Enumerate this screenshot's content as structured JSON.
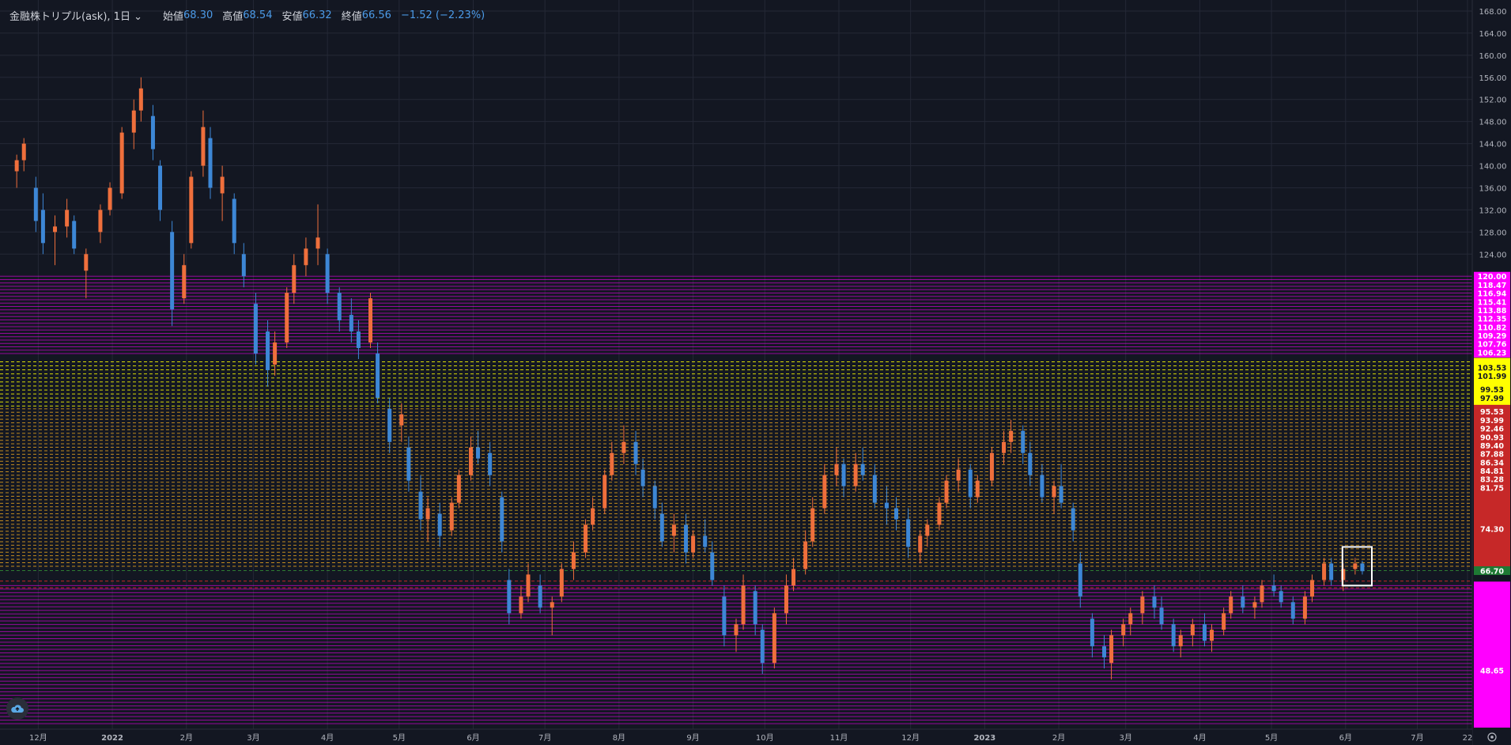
{
  "legend": {
    "symbol": "金融株トリプル(ask), 1日",
    "chevron": "⌄",
    "open_label": "始値",
    "open_value": "68.30",
    "high_label": "高値",
    "high_value": "68.54",
    "low_label": "安値",
    "low_value": "66.32",
    "close_label": "終値",
    "close_value": "66.56",
    "change": "−1.52 (−2.23%)"
  },
  "colors": {
    "background": "#131722",
    "up": "#ef6f3c",
    "down": "#3d87d6",
    "magenta": "#ff00ff",
    "yellow": "#ffff00",
    "red": "#c62828",
    "green": "#2e7d32",
    "grid": "#242836",
    "text": "#b2b5be"
  },
  "icons": {
    "cloud": "cloud-upload-icon",
    "gear": "gear-icon"
  },
  "chart_data": {
    "type": "candlestick",
    "y_axis": {
      "min": 38,
      "max": 170,
      "position": "right",
      "ticks": [
        "168.00",
        "164.00",
        "160.00",
        "156.00",
        "152.00",
        "148.00",
        "144.00",
        "140.00",
        "136.00",
        "132.00",
        "128.00",
        "124.00"
      ]
    },
    "x_axis": {
      "labels": [
        "12月",
        "2022",
        "2月",
        "3月",
        "4月",
        "5月",
        "6月",
        "7月",
        "8月",
        "9月",
        "10月",
        "11月",
        "12月",
        "2023",
        "2月",
        "3月",
        "4月",
        "5月",
        "6月",
        "7月",
        "22"
      ]
    },
    "level_zones": [
      {
        "name": "upper-magenta",
        "from": 106.0,
        "to": 120.0,
        "color": "#ff00ff",
        "count": 24
      },
      {
        "name": "yellow",
        "from": 96.5,
        "to": 104.5,
        "color": "#ffff00",
        "count": 12
      },
      {
        "name": "orange",
        "from": 67.5,
        "to": 96.0,
        "color": "#e0a020",
        "count": 46
      },
      {
        "name": "lower-magenta",
        "from": 39.0,
        "to": 64.0,
        "color": "#ff00ff",
        "count": 40
      }
    ],
    "price_labels": [
      {
        "text": "120.00",
        "value": 120.0,
        "bg": "#ff00ff"
      },
      {
        "text": "118.47",
        "value": 118.47,
        "bg": "#ff00ff"
      },
      {
        "text": "116.94",
        "value": 116.94,
        "bg": "#ff00ff"
      },
      {
        "text": "115.41",
        "value": 115.41,
        "bg": "#ff00ff"
      },
      {
        "text": "113.88",
        "value": 113.88,
        "bg": "#ff00ff"
      },
      {
        "text": "112.35",
        "value": 112.35,
        "bg": "#ff00ff"
      },
      {
        "text": "110.82",
        "value": 110.82,
        "bg": "#ff00ff"
      },
      {
        "text": "109.29",
        "value": 109.29,
        "bg": "#ff00ff"
      },
      {
        "text": "107.76",
        "value": 107.76,
        "bg": "#ff00ff"
      },
      {
        "text": "106.23",
        "value": 106.23,
        "bg": "#ff00ff"
      },
      {
        "text": "103.53",
        "value": 103.53,
        "bg": "#ffff00"
      },
      {
        "text": "101.99",
        "value": 101.99,
        "bg": "#ffff00"
      },
      {
        "text": "99.53",
        "value": 99.53,
        "bg": "#ffff00"
      },
      {
        "text": "97.99",
        "value": 97.99,
        "bg": "#ffff00"
      },
      {
        "text": "95.53",
        "value": 95.53,
        "bg": "#c62828"
      },
      {
        "text": "93.99",
        "value": 93.99,
        "bg": "#c62828"
      },
      {
        "text": "92.46",
        "value": 92.46,
        "bg": "#c62828"
      },
      {
        "text": "90.93",
        "value": 90.93,
        "bg": "#c62828"
      },
      {
        "text": "89.40",
        "value": 89.4,
        "bg": "#c62828"
      },
      {
        "text": "87.88",
        "value": 87.88,
        "bg": "#c62828"
      },
      {
        "text": "86.34",
        "value": 86.34,
        "bg": "#c62828"
      },
      {
        "text": "84.81",
        "value": 84.81,
        "bg": "#c62828"
      },
      {
        "text": "83.28",
        "value": 83.28,
        "bg": "#c62828"
      },
      {
        "text": "81.75",
        "value": 81.75,
        "bg": "#c62828"
      },
      {
        "text": "74.30",
        "value": 74.3,
        "bg": "#c62828"
      },
      {
        "text": "66.70",
        "value": 66.7,
        "bg": "#1e7a34"
      },
      {
        "text": "48.65",
        "value": 48.65,
        "bg": "#ff00ff"
      }
    ],
    "series": [
      {
        "date": "2021-11-22",
        "o": 139,
        "h": 142,
        "l": 136,
        "c": 141
      },
      {
        "date": "2021-11-25",
        "o": 141,
        "h": 145,
        "l": 139,
        "c": 144
      },
      {
        "date": "2021-11-30",
        "o": 136,
        "h": 138,
        "l": 128,
        "c": 130
      },
      {
        "date": "2021-12-03",
        "o": 132,
        "h": 135,
        "l": 124,
        "c": 126
      },
      {
        "date": "2021-12-08",
        "o": 128,
        "h": 131,
        "l": 122,
        "c": 129
      },
      {
        "date": "2021-12-13",
        "o": 129,
        "h": 134,
        "l": 127,
        "c": 132
      },
      {
        "date": "2021-12-16",
        "o": 130,
        "h": 131,
        "l": 124,
        "c": 125
      },
      {
        "date": "2021-12-21",
        "o": 121,
        "h": 125,
        "l": 116,
        "c": 124
      },
      {
        "date": "2021-12-27",
        "o": 128,
        "h": 133,
        "l": 126,
        "c": 132
      },
      {
        "date": "2021-12-31",
        "o": 132,
        "h": 137,
        "l": 131,
        "c": 136
      },
      {
        "date": "2022-01-05",
        "o": 135,
        "h": 147,
        "l": 134,
        "c": 146
      },
      {
        "date": "2022-01-10",
        "o": 146,
        "h": 152,
        "l": 143,
        "c": 150
      },
      {
        "date": "2022-01-13",
        "o": 150,
        "h": 156,
        "l": 148,
        "c": 154
      },
      {
        "date": "2022-01-18",
        "o": 149,
        "h": 151,
        "l": 141,
        "c": 143
      },
      {
        "date": "2022-01-21",
        "o": 140,
        "h": 141,
        "l": 130,
        "c": 132
      },
      {
        "date": "2022-01-26",
        "o": 128,
        "h": 130,
        "l": 111,
        "c": 114
      },
      {
        "date": "2022-01-31",
        "o": 116,
        "h": 124,
        "l": 115,
        "c": 122
      },
      {
        "date": "2022-02-03",
        "o": 126,
        "h": 139,
        "l": 125,
        "c": 138
      },
      {
        "date": "2022-02-08",
        "o": 140,
        "h": 150,
        "l": 138,
        "c": 147
      },
      {
        "date": "2022-02-11",
        "o": 145,
        "h": 147,
        "l": 134,
        "c": 136
      },
      {
        "date": "2022-02-16",
        "o": 135,
        "h": 140,
        "l": 130,
        "c": 138
      },
      {
        "date": "2022-02-21",
        "o": 134,
        "h": 135,
        "l": 124,
        "c": 126
      },
      {
        "date": "2022-02-25",
        "o": 124,
        "h": 126,
        "l": 118,
        "c": 120
      },
      {
        "date": "2022-03-02",
        "o": 115,
        "h": 117,
        "l": 104,
        "c": 106
      },
      {
        "date": "2022-03-07",
        "o": 110,
        "h": 112,
        "l": 100,
        "c": 103
      },
      {
        "date": "2022-03-10",
        "o": 104,
        "h": 110,
        "l": 102,
        "c": 108
      },
      {
        "date": "2022-03-15",
        "o": 108,
        "h": 118,
        "l": 107,
        "c": 117
      },
      {
        "date": "2022-03-18",
        "o": 117,
        "h": 124,
        "l": 115,
        "c": 122
      },
      {
        "date": "2022-03-23",
        "o": 122,
        "h": 127,
        "l": 120,
        "c": 125
      },
      {
        "date": "2022-03-28",
        "o": 125,
        "h": 133,
        "l": 122,
        "c": 127
      },
      {
        "date": "2022-04-01",
        "o": 124,
        "h": 125,
        "l": 115,
        "c": 117
      },
      {
        "date": "2022-04-06",
        "o": 117,
        "h": 118,
        "l": 110,
        "c": 112
      },
      {
        "date": "2022-04-11",
        "o": 113,
        "h": 116,
        "l": 108,
        "c": 110
      },
      {
        "date": "2022-04-14",
        "o": 110,
        "h": 112,
        "l": 105,
        "c": 107
      },
      {
        "date": "2022-04-19",
        "o": 108,
        "h": 117,
        "l": 107,
        "c": 116
      },
      {
        "date": "2022-04-22",
        "o": 106,
        "h": 108,
        "l": 97,
        "c": 98
      },
      {
        "date": "2022-04-27",
        "o": 96,
        "h": 98,
        "l": 88,
        "c": 90
      },
      {
        "date": "2022-05-02",
        "o": 93,
        "h": 97,
        "l": 90,
        "c": 95
      },
      {
        "date": "2022-05-05",
        "o": 89,
        "h": 91,
        "l": 81,
        "c": 83
      },
      {
        "date": "2022-05-10",
        "o": 81,
        "h": 84,
        "l": 74,
        "c": 76
      },
      {
        "date": "2022-05-13",
        "o": 76,
        "h": 80,
        "l": 72,
        "c": 78
      },
      {
        "date": "2022-05-18",
        "o": 77,
        "h": 79,
        "l": 71,
        "c": 73
      },
      {
        "date": "2022-05-23",
        "o": 74,
        "h": 80,
        "l": 73,
        "c": 79
      },
      {
        "date": "2022-05-26",
        "o": 79,
        "h": 85,
        "l": 78,
        "c": 84
      },
      {
        "date": "2022-05-31",
        "o": 84,
        "h": 91,
        "l": 83,
        "c": 89
      },
      {
        "date": "2022-06-03",
        "o": 89,
        "h": 92,
        "l": 86,
        "c": 87
      },
      {
        "date": "2022-06-08",
        "o": 88,
        "h": 90,
        "l": 82,
        "c": 84
      },
      {
        "date": "2022-06-13",
        "o": 80,
        "h": 81,
        "l": 70,
        "c": 72
      },
      {
        "date": "2022-06-16",
        "o": 65,
        "h": 67,
        "l": 57,
        "c": 59
      },
      {
        "date": "2022-06-21",
        "o": 59,
        "h": 64,
        "l": 58,
        "c": 62
      },
      {
        "date": "2022-06-24",
        "o": 62,
        "h": 68,
        "l": 61,
        "c": 66
      },
      {
        "date": "2022-06-29",
        "o": 64,
        "h": 66,
        "l": 59,
        "c": 60
      },
      {
        "date": "2022-07-04",
        "o": 60,
        "h": 62,
        "l": 55,
        "c": 61
      },
      {
        "date": "2022-07-08",
        "o": 62,
        "h": 68,
        "l": 61,
        "c": 67
      },
      {
        "date": "2022-07-13",
        "o": 67,
        "h": 72,
        "l": 65,
        "c": 70
      },
      {
        "date": "2022-07-18",
        "o": 70,
        "h": 76,
        "l": 69,
        "c": 75
      },
      {
        "date": "2022-07-21",
        "o": 75,
        "h": 80,
        "l": 74,
        "c": 78
      },
      {
        "date": "2022-07-26",
        "o": 78,
        "h": 85,
        "l": 77,
        "c": 84
      },
      {
        "date": "2022-07-29",
        "o": 84,
        "h": 90,
        "l": 83,
        "c": 88
      },
      {
        "date": "2022-08-03",
        "o": 88,
        "h": 93,
        "l": 86,
        "c": 90
      },
      {
        "date": "2022-08-08",
        "o": 90,
        "h": 92,
        "l": 84,
        "c": 86
      },
      {
        "date": "2022-08-11",
        "o": 85,
        "h": 87,
        "l": 80,
        "c": 82
      },
      {
        "date": "2022-08-16",
        "o": 82,
        "h": 83,
        "l": 76,
        "c": 78
      },
      {
        "date": "2022-08-19",
        "o": 77,
        "h": 79,
        "l": 71,
        "c": 72
      },
      {
        "date": "2022-08-24",
        "o": 73,
        "h": 77,
        "l": 70,
        "c": 75
      },
      {
        "date": "2022-08-29",
        "o": 75,
        "h": 77,
        "l": 68,
        "c": 70
      },
      {
        "date": "2022-09-01",
        "o": 70,
        "h": 74,
        "l": 69,
        "c": 73
      },
      {
        "date": "2022-09-06",
        "o": 73,
        "h": 76,
        "l": 70,
        "c": 71
      },
      {
        "date": "2022-09-09",
        "o": 70,
        "h": 72,
        "l": 64,
        "c": 65
      },
      {
        "date": "2022-09-14",
        "o": 62,
        "h": 64,
        "l": 53,
        "c": 55
      },
      {
        "date": "2022-09-19",
        "o": 55,
        "h": 58,
        "l": 52,
        "c": 57
      },
      {
        "date": "2022-09-22",
        "o": 57,
        "h": 66,
        "l": 56,
        "c": 64
      },
      {
        "date": "2022-09-27",
        "o": 63,
        "h": 64,
        "l": 55,
        "c": 57
      },
      {
        "date": "2022-09-30",
        "o": 56,
        "h": 57,
        "l": 48,
        "c": 50
      },
      {
        "date": "2022-10-05",
        "o": 50,
        "h": 60,
        "l": 49,
        "c": 59
      },
      {
        "date": "2022-10-10",
        "o": 59,
        "h": 66,
        "l": 57,
        "c": 64
      },
      {
        "date": "2022-10-13",
        "o": 64,
        "h": 69,
        "l": 63,
        "c": 67
      },
      {
        "date": "2022-10-18",
        "o": 67,
        "h": 74,
        "l": 66,
        "c": 72
      },
      {
        "date": "2022-10-21",
        "o": 72,
        "h": 80,
        "l": 71,
        "c": 78
      },
      {
        "date": "2022-10-26",
        "o": 78,
        "h": 86,
        "l": 77,
        "c": 84
      },
      {
        "date": "2022-10-31",
        "o": 84,
        "h": 89,
        "l": 82,
        "c": 86
      },
      {
        "date": "2022-11-03",
        "o": 86,
        "h": 87,
        "l": 80,
        "c": 82
      },
      {
        "date": "2022-11-08",
        "o": 82,
        "h": 88,
        "l": 81,
        "c": 86
      },
      {
        "date": "2022-11-11",
        "o": 86,
        "h": 89,
        "l": 83,
        "c": 84
      },
      {
        "date": "2022-11-16",
        "o": 84,
        "h": 86,
        "l": 78,
        "c": 79
      },
      {
        "date": "2022-11-21",
        "o": 79,
        "h": 82,
        "l": 75,
        "c": 78
      },
      {
        "date": "2022-11-25",
        "o": 78,
        "h": 80,
        "l": 74,
        "c": 76
      },
      {
        "date": "2022-11-30",
        "o": 76,
        "h": 78,
        "l": 69,
        "c": 71
      },
      {
        "date": "2022-12-05",
        "o": 70,
        "h": 74,
        "l": 68,
        "c": 73
      },
      {
        "date": "2022-12-08",
        "o": 73,
        "h": 76,
        "l": 71,
        "c": 75
      },
      {
        "date": "2022-12-13",
        "o": 75,
        "h": 80,
        "l": 74,
        "c": 79
      },
      {
        "date": "2022-12-16",
        "o": 79,
        "h": 84,
        "l": 78,
        "c": 83
      },
      {
        "date": "2022-12-21",
        "o": 83,
        "h": 87,
        "l": 81,
        "c": 85
      },
      {
        "date": "2022-12-26",
        "o": 85,
        "h": 86,
        "l": 78,
        "c": 80
      },
      {
        "date": "2022-12-29",
        "o": 80,
        "h": 84,
        "l": 79,
        "c": 83
      },
      {
        "date": "2023-01-04",
        "o": 83,
        "h": 89,
        "l": 82,
        "c": 88
      },
      {
        "date": "2023-01-09",
        "o": 88,
        "h": 92,
        "l": 86,
        "c": 90
      },
      {
        "date": "2023-01-12",
        "o": 90,
        "h": 94,
        "l": 88,
        "c": 92
      },
      {
        "date": "2023-01-17",
        "o": 92,
        "h": 93,
        "l": 86,
        "c": 88
      },
      {
        "date": "2023-01-20",
        "o": 88,
        "h": 90,
        "l": 82,
        "c": 84
      },
      {
        "date": "2023-01-25",
        "o": 84,
        "h": 86,
        "l": 79,
        "c": 80
      },
      {
        "date": "2023-01-30",
        "o": 80,
        "h": 83,
        "l": 77,
        "c": 82
      },
      {
        "date": "2023-02-02",
        "o": 82,
        "h": 86,
        "l": 78,
        "c": 79
      },
      {
        "date": "2023-02-07",
        "o": 78,
        "h": 79,
        "l": 72,
        "c": 74
      },
      {
        "date": "2023-02-10",
        "o": 68,
        "h": 70,
        "l": 60,
        "c": 62
      },
      {
        "date": "2023-02-15",
        "o": 58,
        "h": 59,
        "l": 51,
        "c": 53
      },
      {
        "date": "2023-02-20",
        "o": 53,
        "h": 55,
        "l": 49,
        "c": 51
      },
      {
        "date": "2023-02-23",
        "o": 50,
        "h": 56,
        "l": 47,
        "c": 55
      },
      {
        "date": "2023-02-28",
        "o": 55,
        "h": 58,
        "l": 53,
        "c": 57
      },
      {
        "date": "2023-03-03",
        "o": 57,
        "h": 60,
        "l": 55,
        "c": 59
      },
      {
        "date": "2023-03-08",
        "o": 59,
        "h": 63,
        "l": 57,
        "c": 62
      },
      {
        "date": "2023-03-13",
        "o": 62,
        "h": 64,
        "l": 58,
        "c": 60
      },
      {
        "date": "2023-03-16",
        "o": 60,
        "h": 62,
        "l": 56,
        "c": 57
      },
      {
        "date": "2023-03-21",
        "o": 57,
        "h": 58,
        "l": 52,
        "c": 53
      },
      {
        "date": "2023-03-24",
        "o": 53,
        "h": 56,
        "l": 51,
        "c": 55
      },
      {
        "date": "2023-03-29",
        "o": 55,
        "h": 58,
        "l": 53,
        "c": 57
      },
      {
        "date": "2023-04-03",
        "o": 57,
        "h": 59,
        "l": 53,
        "c": 54
      },
      {
        "date": "2023-04-06",
        "o": 54,
        "h": 57,
        "l": 52,
        "c": 56
      },
      {
        "date": "2023-04-11",
        "o": 56,
        "h": 60,
        "l": 55,
        "c": 59
      },
      {
        "date": "2023-04-14",
        "o": 59,
        "h": 63,
        "l": 58,
        "c": 62
      },
      {
        "date": "2023-04-19",
        "o": 62,
        "h": 64,
        "l": 59,
        "c": 60
      },
      {
        "date": "2023-04-24",
        "o": 60,
        "h": 62,
        "l": 58,
        "c": 61
      },
      {
        "date": "2023-04-27",
        "o": 61,
        "h": 65,
        "l": 60,
        "c": 64
      },
      {
        "date": "2023-05-02",
        "o": 64,
        "h": 66,
        "l": 62,
        "c": 63
      },
      {
        "date": "2023-05-05",
        "o": 63,
        "h": 64,
        "l": 60,
        "c": 61
      },
      {
        "date": "2023-05-10",
        "o": 61,
        "h": 62,
        "l": 57,
        "c": 58
      },
      {
        "date": "2023-05-15",
        "o": 58,
        "h": 63,
        "l": 57,
        "c": 62
      },
      {
        "date": "2023-05-18",
        "o": 62,
        "h": 66,
        "l": 61,
        "c": 65
      },
      {
        "date": "2023-05-23",
        "o": 65,
        "h": 69,
        "l": 64,
        "c": 68
      },
      {
        "date": "2023-05-26",
        "o": 68,
        "h": 69,
        "l": 64,
        "c": 65
      },
      {
        "date": "2023-05-31",
        "o": 65,
        "h": 68,
        "l": 63,
        "c": 67
      },
      {
        "date": "2023-06-05",
        "o": 67,
        "h": 69,
        "l": 66,
        "c": 68
      },
      {
        "date": "2023-06-08",
        "o": 68,
        "h": 68.5,
        "l": 66,
        "c": 66.6
      }
    ]
  }
}
